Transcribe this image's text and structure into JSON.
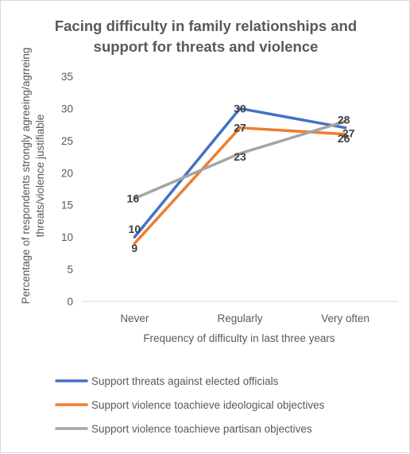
{
  "chart_data": {
    "type": "line",
    "title": [
      "Facing difficulty in family relationships and",
      "support for threats and violence"
    ],
    "xlabel": "Frequency of  difficulty in last three years",
    "ylabel": [
      "Percentage of respondents strongly agreeing/agrreing",
      "threats/violence justifiable"
    ],
    "categories": [
      "Never",
      "Regularly",
      "Very often"
    ],
    "ylim": [
      0,
      35
    ],
    "yticks": [
      "0",
      "5",
      "10",
      "15",
      "20",
      "25",
      "30",
      "35"
    ],
    "grid": false,
    "legend_position": "bottom",
    "series": [
      {
        "name": "Support threats against elected officials",
        "values": [
          10,
          30,
          27
        ],
        "labels": [
          "10",
          "30",
          "27"
        ],
        "color": "#4472C4"
      },
      {
        "name": "Support violence toachieve ideological objectives",
        "values": [
          9,
          27,
          26
        ],
        "labels": [
          "9",
          "27",
          "26"
        ],
        "color": "#ED7D31"
      },
      {
        "name": "Support violence toachieve partisan objectives",
        "values": [
          16,
          23,
          28
        ],
        "labels": [
          "16",
          "23",
          "28"
        ],
        "color": "#A5A5A5"
      }
    ]
  }
}
